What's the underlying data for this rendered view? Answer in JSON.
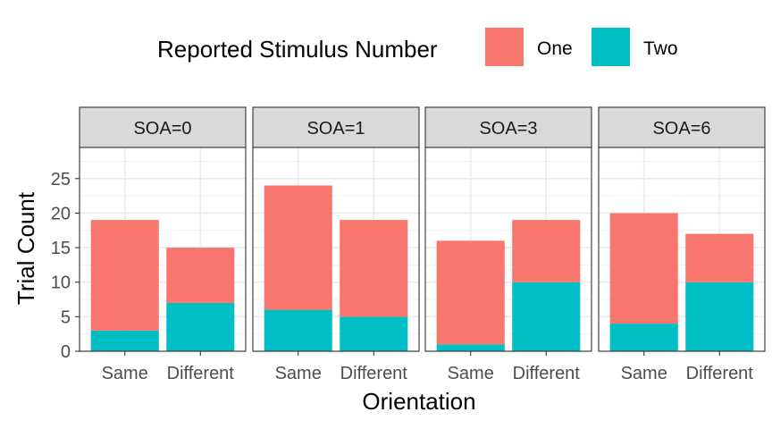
{
  "chart_data": {
    "type": "bar",
    "stacked": true,
    "facet_variable": "SOA",
    "panels": [
      {
        "label": "SOA=0",
        "one": [
          16,
          8
        ],
        "two": [
          3,
          7
        ]
      },
      {
        "label": "SOA=1",
        "one": [
          18,
          14
        ],
        "two": [
          6,
          5
        ]
      },
      {
        "label": "SOA=3",
        "one": [
          15,
          9
        ],
        "two": [
          1,
          10
        ]
      },
      {
        "label": "SOA=6",
        "one": [
          16,
          7
        ],
        "two": [
          4,
          10
        ]
      }
    ],
    "categories": [
      "Same",
      "Different"
    ],
    "series": [
      {
        "key": "one",
        "name": "One",
        "color": "#F8766D"
      },
      {
        "key": "two",
        "name": "Two",
        "color": "#00BFC4"
      }
    ],
    "legend": {
      "title": "Reported Stimulus Number",
      "position": "top"
    },
    "xlabel": "Orientation",
    "ylabel": "Trial Count",
    "ylim": [
      0,
      29.5
    ],
    "yticks": [
      0,
      5,
      10,
      15,
      20,
      25
    ],
    "grid": true,
    "theme": "bw"
  }
}
